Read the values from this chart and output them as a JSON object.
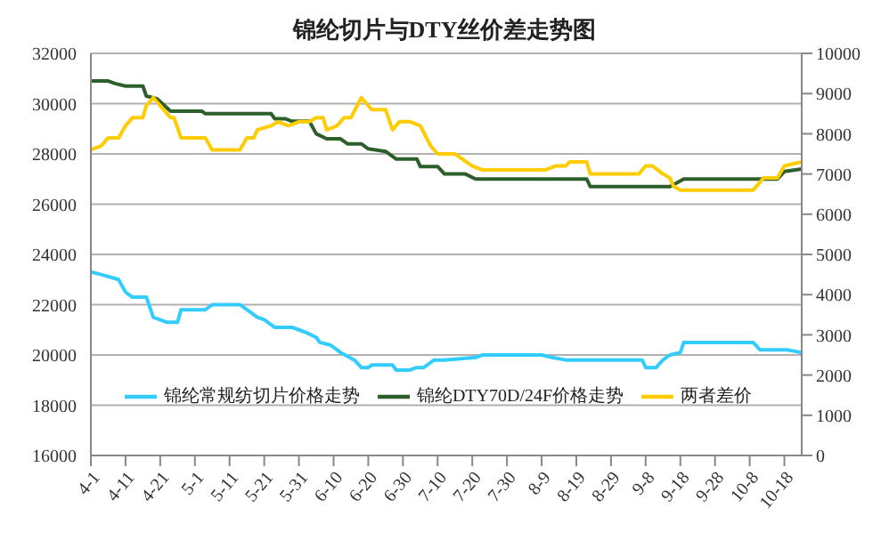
{
  "chart_data": {
    "type": "line",
    "title": "锦纶切片与DTY丝价差走势图",
    "xlim": [
      "--04-01",
      "--10-23"
    ],
    "xticks": [
      {
        "value": "--04-01",
        "label": "4-1"
      },
      {
        "value": "--04-11",
        "label": "4-11"
      },
      {
        "value": "--04-21",
        "label": "4-21"
      },
      {
        "value": "--05-01",
        "label": "5-1"
      },
      {
        "value": "--05-11",
        "label": "5-11"
      },
      {
        "value": "--05-21",
        "label": "5-21"
      },
      {
        "value": "--05-31",
        "label": "5-31"
      },
      {
        "value": "--06-10",
        "label": "6-10"
      },
      {
        "value": "--06-20",
        "label": "6-20"
      },
      {
        "value": "--06-30",
        "label": "6-30"
      },
      {
        "value": "--07-10",
        "label": "7-10"
      },
      {
        "value": "--07-20",
        "label": "7-20"
      },
      {
        "value": "--07-30",
        "label": "7-30"
      },
      {
        "value": "--08-09",
        "label": "8-9"
      },
      {
        "value": "--08-19",
        "label": "8-19"
      },
      {
        "value": "--08-29",
        "label": "8-29"
      },
      {
        "value": "--09-08",
        "label": "9-8"
      },
      {
        "value": "--09-18",
        "label": "9-18"
      },
      {
        "value": "--09-28",
        "label": "9-28"
      },
      {
        "value": "--10-08",
        "label": "10-8"
      },
      {
        "value": "--10-18",
        "label": "10-18"
      }
    ],
    "ylim": [
      16000,
      32000
    ],
    "yticks": [
      16000,
      18000,
      20000,
      22000,
      24000,
      26000,
      28000,
      30000,
      32000
    ],
    "y2lim": [
      0,
      10000
    ],
    "y2ticks": [
      0,
      1000,
      2000,
      3000,
      4000,
      5000,
      6000,
      7000,
      8000,
      9000,
      10000
    ],
    "grid": "y",
    "legend": "bottom",
    "marker": "none",
    "line_style": "solid",
    "series": [
      {
        "name": "锦纶常规纺切片价格走势",
        "color": "#33ccff",
        "x": [
          "--04-01",
          "--04-04",
          "--04-09",
          "--04-11",
          "--04-13",
          "--04-17",
          "--04-19",
          "--04-23",
          "--04-26",
          "--04-27",
          "--05-04",
          "--05-06",
          "--05-14",
          "--05-17",
          "--05-19",
          "--05-21",
          "--05-24",
          "--05-29",
          "--05-31",
          "--06-02",
          "--06-05",
          "--06-06",
          "--06-09",
          "--06-12",
          "--06-16",
          "--06-18",
          "--06-20",
          "--06-21",
          "--06-27",
          "--06-28",
          "--07-02",
          "--07-04",
          "--07-06",
          "--07-09",
          "--07-12",
          "--07-21",
          "--07-23",
          "--08-09",
          "--08-12",
          "--08-16",
          "--09-07",
          "--09-08",
          "--09-11",
          "--09-13",
          "--09-15",
          "--09-18",
          "--09-19",
          "--10-09",
          "--10-11",
          "--10-19",
          "--10-23"
        ],
        "values": [
          23300,
          23200,
          23000,
          22500,
          22300,
          22300,
          21500,
          21300,
          21300,
          21800,
          21800,
          22000,
          22000,
          21700,
          21500,
          21400,
          21100,
          21100,
          21000,
          20900,
          20700,
          20500,
          20400,
          20100,
          19800,
          19500,
          19500,
          19600,
          19600,
          19400,
          19400,
          19500,
          19500,
          19800,
          19800,
          19900,
          20000,
          20000,
          19900,
          19800,
          19800,
          19500,
          19500,
          19800,
          20000,
          20100,
          20500,
          20500,
          20200,
          20200,
          20100
        ]
      },
      {
        "name": "锦纶DTY70D/24F价格走势",
        "color": "#2d5f2d",
        "x": [
          "--04-01",
          "--04-06",
          "--04-08",
          "--04-11",
          "--04-16",
          "--04-17",
          "--04-20",
          "--04-24",
          "--05-03",
          "--05-04",
          "--05-23",
          "--05-24",
          "--05-27",
          "--05-29",
          "--06-03",
          "--06-05",
          "--06-08",
          "--06-12",
          "--06-14",
          "--06-18",
          "--06-20",
          "--06-25",
          "--06-28",
          "--07-04",
          "--07-05",
          "--07-10",
          "--07-12",
          "--07-18",
          "--07-21",
          "--08-22",
          "--08-23",
          "--09-15",
          "--09-19",
          "--10-16",
          "--10-18",
          "--10-23"
        ],
        "values": [
          30900,
          30900,
          30800,
          30700,
          30700,
          30300,
          30200,
          29700,
          29700,
          29600,
          29600,
          29400,
          29400,
          29300,
          29300,
          28800,
          28600,
          28600,
          28400,
          28400,
          28200,
          28100,
          27800,
          27800,
          27500,
          27500,
          27200,
          27200,
          27000,
          27000,
          26700,
          26700,
          27000,
          27000,
          27300,
          27400
        ]
      },
      {
        "name": "两者差价",
        "color": "#ffcc00",
        "axis": "y2",
        "x": [
          "--04-01",
          "--04-04",
          "--04-06",
          "--04-09",
          "--04-11",
          "--04-13",
          "--04-16",
          "--04-17",
          "--04-19",
          "--04-21",
          "--04-24",
          "--04-25",
          "--04-27",
          "--05-04",
          "--05-06",
          "--05-14",
          "--05-16",
          "--05-18",
          "--05-19",
          "--05-23",
          "--05-25",
          "--05-28",
          "--05-31",
          "--06-03",
          "--06-05",
          "--06-07",
          "--06-08",
          "--06-11",
          "--06-13",
          "--06-15",
          "--06-18",
          "--06-21",
          "--06-25",
          "--06-27",
          "--06-29",
          "--07-02",
          "--07-05",
          "--07-08",
          "--07-10",
          "--07-15",
          "--07-20",
          "--07-23",
          "--08-10",
          "--08-13",
          "--08-16",
          "--08-17",
          "--08-22",
          "--08-23",
          "--09-06",
          "--09-08",
          "--09-10",
          "--09-13",
          "--09-15",
          "--09-16",
          "--09-18",
          "--10-09",
          "--10-12",
          "--10-16",
          "--10-18",
          "--10-23"
        ],
        "values": [
          7600,
          7700,
          7900,
          7900,
          8200,
          8400,
          8400,
          8700,
          8900,
          8700,
          8400,
          8400,
          7900,
          7900,
          7600,
          7600,
          7900,
          7900,
          8100,
          8200,
          8300,
          8200,
          8300,
          8300,
          8400,
          8400,
          8100,
          8200,
          8400,
          8400,
          8900,
          8600,
          8600,
          8100,
          8300,
          8300,
          8200,
          7700,
          7500,
          7500,
          7200,
          7100,
          7100,
          7200,
          7200,
          7300,
          7300,
          7000,
          7000,
          7200,
          7200,
          7000,
          6900,
          6700,
          6600,
          6600,
          6900,
          6900,
          7200,
          7300
        ]
      }
    ]
  }
}
